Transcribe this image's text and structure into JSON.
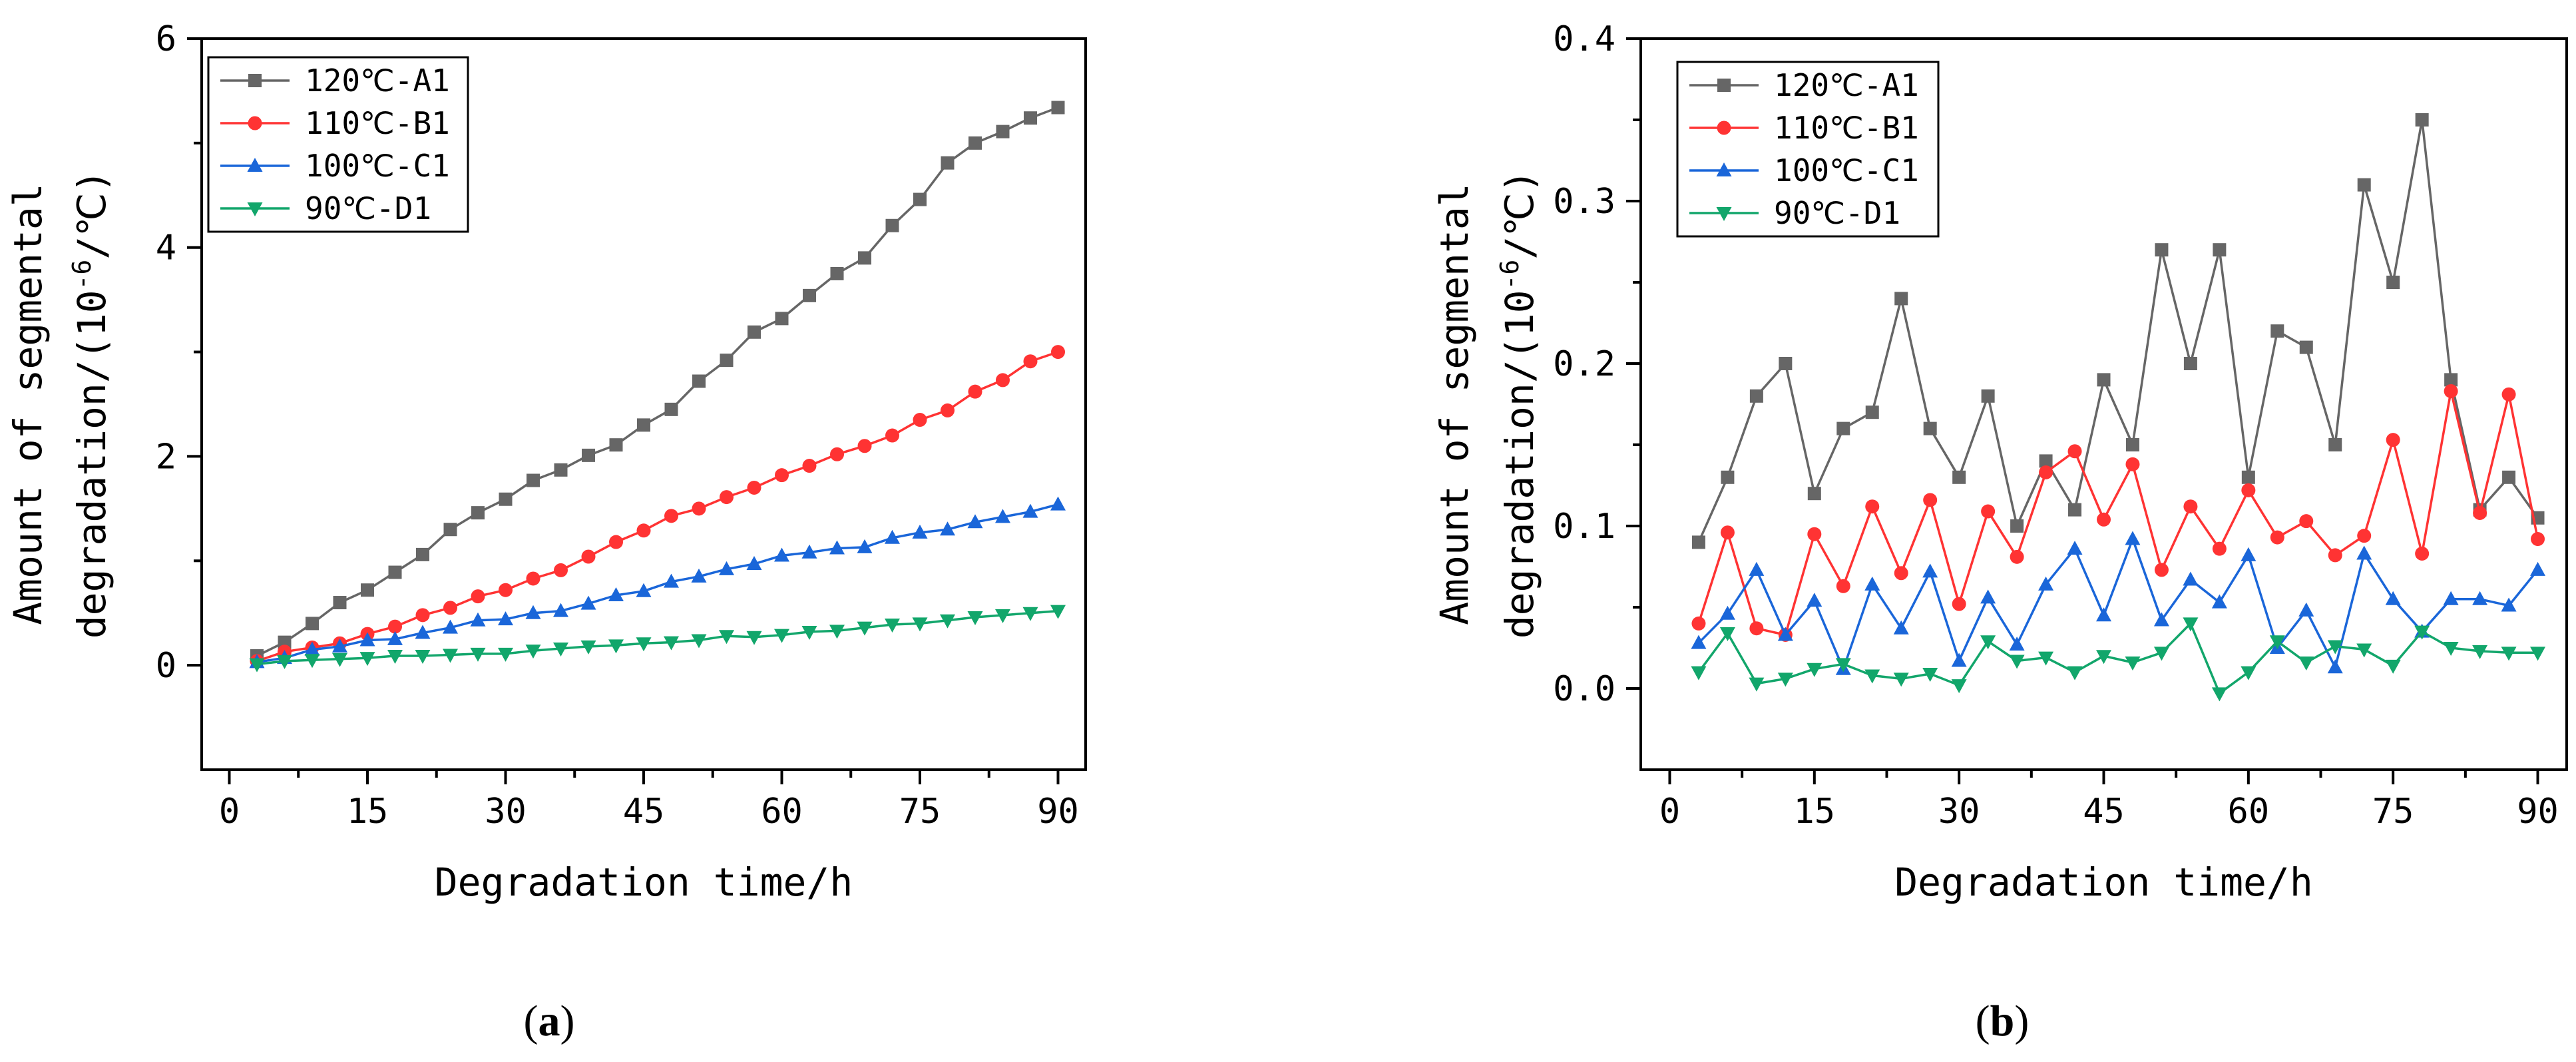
{
  "chart_data": [
    {
      "type": "line",
      "panel_label": "(a)",
      "panel_letter": "a",
      "title": "",
      "xlabel": "Degradation time/h",
      "ylabel_line1": "Amount of segmental",
      "ylabel_line2_prefix": "degradation/(10",
      "ylabel_line2_sup": "-6",
      "ylabel_line2_suffix": "/℃)",
      "xlim": [
        -3,
        93
      ],
      "ylim": [
        -1,
        6
      ],
      "xticks": [
        0,
        15,
        30,
        45,
        60,
        75,
        90
      ],
      "yticks": [
        0,
        2,
        4,
        6
      ],
      "ytick_labels": [
        "0",
        "2",
        "4",
        "6"
      ],
      "legend_position": "top-left",
      "x": [
        3,
        6,
        9,
        12,
        15,
        18,
        21,
        24,
        27,
        30,
        33,
        36,
        39,
        42,
        45,
        48,
        51,
        54,
        57,
        60,
        63,
        66,
        69,
        72,
        75,
        78,
        81,
        84,
        87,
        90
      ],
      "series": [
        {
          "name": "120℃-A1",
          "color": "#666666",
          "marker": "square",
          "values": [
            0.09,
            0.22,
            0.4,
            0.6,
            0.72,
            0.89,
            1.06,
            1.3,
            1.46,
            1.59,
            1.77,
            1.87,
            2.01,
            2.11,
            2.3,
            2.45,
            2.72,
            2.92,
            3.19,
            3.32,
            3.54,
            3.75,
            3.9,
            4.21,
            4.46,
            4.81,
            5.0,
            5.11,
            5.24,
            5.34
          ]
        },
        {
          "name": "110℃-B1",
          "color": "#ff3333",
          "marker": "circle",
          "values": [
            0.04,
            0.13,
            0.17,
            0.21,
            0.3,
            0.37,
            0.48,
            0.55,
            0.66,
            0.72,
            0.83,
            0.91,
            1.04,
            1.18,
            1.29,
            1.43,
            1.5,
            1.61,
            1.7,
            1.82,
            1.91,
            2.02,
            2.1,
            2.2,
            2.35,
            2.44,
            2.62,
            2.73,
            2.91,
            3.0
          ]
        },
        {
          "name": "100℃-C1",
          "color": "#1a66d9",
          "marker": "triangle-up",
          "values": [
            0.03,
            0.07,
            0.15,
            0.18,
            0.24,
            0.25,
            0.31,
            0.36,
            0.43,
            0.44,
            0.5,
            0.52,
            0.59,
            0.67,
            0.71,
            0.8,
            0.85,
            0.92,
            0.97,
            1.05,
            1.08,
            1.12,
            1.13,
            1.22,
            1.27,
            1.3,
            1.37,
            1.42,
            1.47,
            1.54
          ]
        },
        {
          "name": "90℃-D1",
          "color": "#12a66b",
          "marker": "triangle-down",
          "values": [
            0.01,
            0.04,
            0.05,
            0.06,
            0.07,
            0.09,
            0.09,
            0.1,
            0.11,
            0.11,
            0.14,
            0.16,
            0.18,
            0.19,
            0.21,
            0.22,
            0.24,
            0.28,
            0.27,
            0.29,
            0.32,
            0.33,
            0.36,
            0.39,
            0.4,
            0.43,
            0.46,
            0.48,
            0.5,
            0.52
          ]
        }
      ]
    },
    {
      "type": "line",
      "panel_label": "(b)",
      "panel_letter": "b",
      "title": "",
      "xlabel": "Degradation time/h",
      "ylabel_line1": "Amount of segmental",
      "ylabel_line2_prefix": "degradation/(10",
      "ylabel_line2_sup": "-6",
      "ylabel_line2_suffix": "/℃)",
      "xlim": [
        -3,
        93
      ],
      "ylim": [
        -0.05,
        0.4
      ],
      "xticks": [
        0,
        15,
        30,
        45,
        60,
        75,
        90
      ],
      "yticks": [
        0.0,
        0.1,
        0.2,
        0.3,
        0.4
      ],
      "ytick_labels": [
        "0.0",
        "0.1",
        "0.2",
        "0.3",
        "0.4"
      ],
      "legend_position": "top-left",
      "x": [
        3,
        6,
        9,
        12,
        15,
        18,
        21,
        24,
        27,
        30,
        33,
        36,
        39,
        42,
        45,
        48,
        51,
        54,
        57,
        60,
        63,
        66,
        69,
        72,
        75,
        78,
        81,
        84,
        87,
        90
      ],
      "series": [
        {
          "name": "120℃-A1",
          "color": "#666666",
          "marker": "square",
          "values": [
            0.09,
            0.13,
            0.18,
            0.2,
            0.12,
            0.16,
            0.17,
            0.24,
            0.16,
            0.13,
            0.18,
            0.1,
            0.14,
            0.11,
            0.19,
            0.15,
            0.27,
            0.2,
            0.27,
            0.13,
            0.22,
            0.21,
            0.15,
            0.31,
            0.25,
            0.35,
            0.19,
            0.11,
            0.13,
            0.105
          ]
        },
        {
          "name": "110℃-B1",
          "color": "#ff3333",
          "marker": "circle",
          "values": [
            0.04,
            0.096,
            0.037,
            0.033,
            0.095,
            0.063,
            0.112,
            0.071,
            0.116,
            0.052,
            0.109,
            0.081,
            0.133,
            0.146,
            0.104,
            0.138,
            0.073,
            0.112,
            0.086,
            0.122,
            0.093,
            0.103,
            0.082,
            0.094,
            0.153,
            0.083,
            0.183,
            0.108,
            0.181,
            0.092
          ]
        },
        {
          "name": "100℃-C1",
          "color": "#1a66d9",
          "marker": "triangle-up",
          "values": [
            0.028,
            0.046,
            0.073,
            0.033,
            0.054,
            0.012,
            0.064,
            0.037,
            0.072,
            0.017,
            0.056,
            0.027,
            0.064,
            0.086,
            0.045,
            0.092,
            0.042,
            0.067,
            0.053,
            0.082,
            0.025,
            0.048,
            0.013,
            0.083,
            0.055,
            0.035,
            0.055,
            0.055,
            0.051,
            0.073
          ]
        },
        {
          "name": "90℃-D1",
          "color": "#12a66b",
          "marker": "triangle-down",
          "values": [
            0.01,
            0.034,
            0.003,
            0.006,
            0.012,
            0.015,
            0.008,
            0.006,
            0.009,
            0.002,
            0.029,
            0.017,
            0.019,
            0.01,
            0.02,
            0.016,
            0.022,
            0.04,
            -0.003,
            0.01,
            0.029,
            0.016,
            0.026,
            0.024,
            0.014,
            0.035,
            0.025,
            0.023,
            0.022,
            0.022
          ]
        }
      ]
    }
  ]
}
